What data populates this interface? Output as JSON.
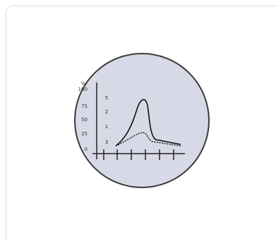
{
  "icon": {
    "unit": "%",
    "left_scale": [
      "100",
      "75",
      "50",
      "25",
      "0"
    ],
    "right_scale": [
      "5",
      "2",
      "1",
      "3"
    ]
  }
}
